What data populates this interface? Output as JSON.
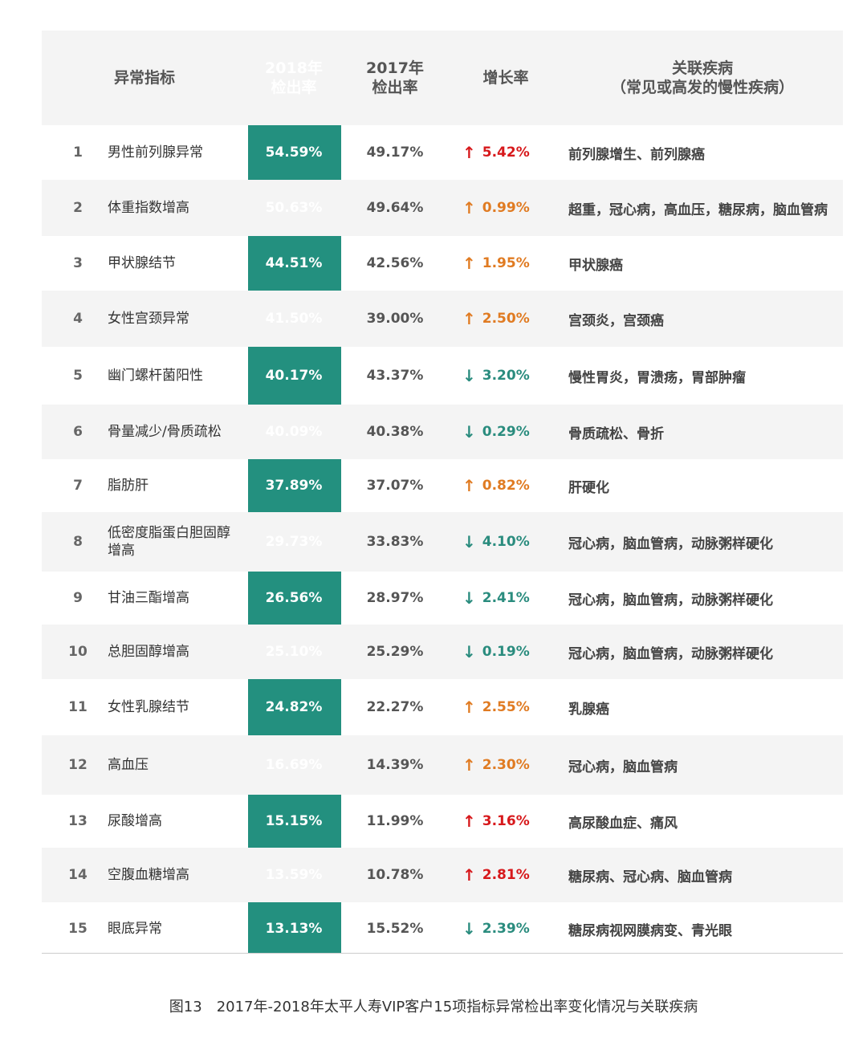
{
  "header": {
    "indicator": "异常指标",
    "rate_2018_line1": "2018年",
    "rate_2018_line2": "检出率",
    "rate_2017_line1": "2017年",
    "rate_2017_line2": "检出率",
    "growth": "增长率",
    "disease_line1": "关联疾病",
    "disease_line2": "（常见或高发的慢性疾病）"
  },
  "rows": [
    {
      "num": "1",
      "name": "男性前列腺异常",
      "r2018": "54.59%",
      "r2017": "49.17%",
      "dir": "↑",
      "growth": "5.42%",
      "color": "red",
      "disease": "前列腺增生、前列腺癌"
    },
    {
      "num": "2",
      "name": "体重指数增高",
      "r2018": "50.63%",
      "r2017": "49.64%",
      "dir": "↑",
      "growth": "0.99%",
      "color": "orange",
      "disease": "超重，冠心病，高血压，糖尿病，脑血管病"
    },
    {
      "num": "3",
      "name": "甲状腺结节",
      "r2018": "44.51%",
      "r2017": "42.56%",
      "dir": "↑",
      "growth": "1.95%",
      "color": "orange",
      "disease": "甲状腺癌"
    },
    {
      "num": "4",
      "name": "女性宫颈异常",
      "r2018": "41.50%",
      "r2017": "39.00%",
      "dir": "↑",
      "growth": "2.50%",
      "color": "orange",
      "disease": "宫颈炎，宫颈癌"
    },
    {
      "num": "5",
      "name": "幽门螺杆菌阳性",
      "r2018": "40.17%",
      "r2017": "43.37%",
      "dir": "↓",
      "growth": "3.20%",
      "color": "teal",
      "disease": "慢性胃炎，胃溃疡，胃部肿瘤"
    },
    {
      "num": "6",
      "name": "骨量减少/骨质疏松",
      "r2018": "40.09%",
      "r2017": "40.38%",
      "dir": "↓",
      "growth": "0.29%",
      "color": "teal",
      "disease": "骨质疏松、骨折"
    },
    {
      "num": "7",
      "name": "脂肪肝",
      "r2018": "37.89%",
      "r2017": "37.07%",
      "dir": "↑",
      "growth": "0.82%",
      "color": "orange",
      "disease": "肝硬化"
    },
    {
      "num": "8",
      "name": "低密度脂蛋白胆固醇增高",
      "r2018": "29.73%",
      "r2017": "33.83%",
      "dir": "↓",
      "growth": "4.10%",
      "color": "teal",
      "disease": "冠心病，脑血管病，动脉粥样硬化"
    },
    {
      "num": "9",
      "name": "甘油三酯增高",
      "r2018": "26.56%",
      "r2017": "28.97%",
      "dir": "↓",
      "growth": "2.41%",
      "color": "teal",
      "disease": "冠心病，脑血管病，动脉粥样硬化"
    },
    {
      "num": "10",
      "name": "总胆固醇增高",
      "r2018": "25.10%",
      "r2017": "25.29%",
      "dir": "↓",
      "growth": "0.19%",
      "color": "teal",
      "disease": "冠心病，脑血管病，动脉粥样硬化"
    },
    {
      "num": "11",
      "name": "女性乳腺结节",
      "r2018": "24.82%",
      "r2017": "22.27%",
      "dir": "↑",
      "growth": "2.55%",
      "color": "orange",
      "disease": "乳腺癌"
    },
    {
      "num": "12",
      "name": "高血压",
      "r2018": "16.69%",
      "r2017": "14.39%",
      "dir": "↑",
      "growth": "2.30%",
      "color": "orange",
      "disease": "冠心病，脑血管病"
    },
    {
      "num": "13",
      "name": "尿酸增高",
      "r2018": "15.15%",
      "r2017": "11.99%",
      "dir": "↑",
      "growth": "3.16%",
      "color": "red",
      "disease": "高尿酸血症、痛风"
    },
    {
      "num": "14",
      "name": "空腹血糖增高",
      "r2018": "13.59%",
      "r2017": "10.78%",
      "dir": "↑",
      "growth": "2.81%",
      "color": "red",
      "disease": "糖尿病、冠心病、脑血管病"
    },
    {
      "num": "15",
      "name": "眼底异常",
      "r2018": "13.13%",
      "r2017": "15.52%",
      "dir": "↓",
      "growth": "2.39%",
      "color": "teal",
      "disease": "糖尿病视网膜病变、青光眼"
    }
  ],
  "caption": "图13　2017年-2018年太平人寿VIP客户15项指标异常检出率变化情况与关联疾病",
  "colors": {
    "accent": "#23907f",
    "red": "#d7191c",
    "orange": "#e07b22",
    "teal": "#2a8c7e"
  }
}
